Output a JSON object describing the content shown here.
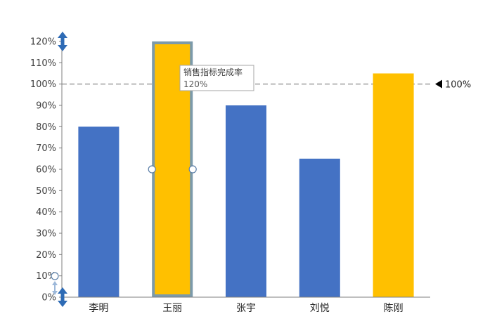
{
  "chart_data": {
    "type": "bar",
    "categories": [
      "李明",
      "王丽",
      "张宇",
      "刘悦",
      "陈刚"
    ],
    "series": [
      {
        "values": [
          80,
          120,
          90,
          65,
          105
        ]
      }
    ],
    "bar_colors": [
      "#4472C4",
      "#FFC000",
      "#4472C4",
      "#4472C4",
      "#FFC000"
    ],
    "ylim": [
      0,
      120
    ],
    "yticks": [
      0,
      10,
      20,
      30,
      40,
      50,
      60,
      70,
      80,
      90,
      100,
      110,
      120
    ],
    "ytick_labels": [
      "0%",
      "10%",
      "20%",
      "30%",
      "40%",
      "50%",
      "60%",
      "70%",
      "80%",
      "90%",
      "100%",
      "110%",
      "120%"
    ],
    "title": "",
    "xlabel": "",
    "ylabel": "",
    "grid": false,
    "reference_line": {
      "value": 100,
      "label": "100%",
      "style": "dashed",
      "color": "#7f7f7f"
    },
    "tooltip": {
      "category": "王丽",
      "series_name": "销售指标完成率",
      "value_text": "120%"
    },
    "selected_category": "王丽"
  },
  "colors": {
    "blue": "#4472C4",
    "gold": "#FFC000",
    "selection_outline": "#7c9aaa",
    "handle_arrow": "#2e6bb5"
  },
  "icons": {
    "target_marker": "triangle-left-icon",
    "resize_handle": "double-arrow-vertical-icon"
  }
}
